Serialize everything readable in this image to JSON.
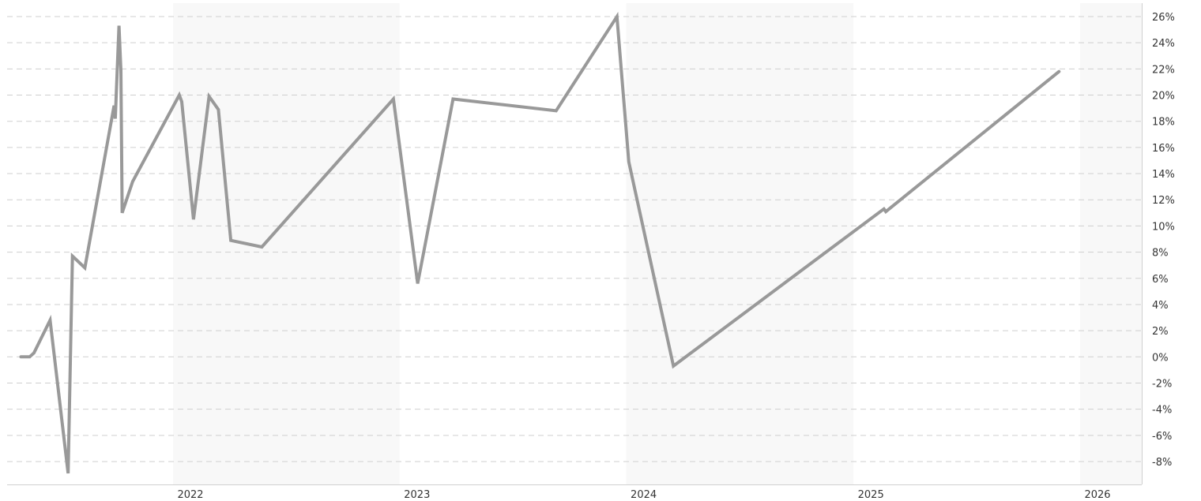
{
  "chart_data": {
    "type": "line",
    "title": "",
    "xlabel": "",
    "ylabel": "",
    "ylim": [
      -9,
      26.5
    ],
    "xlim": [
      "2021-04-25",
      "2026-04-18"
    ],
    "grid": true,
    "y_ticks": [
      {
        "value": 26,
        "label": "26%"
      },
      {
        "value": 24,
        "label": "24%"
      },
      {
        "value": 22,
        "label": "22%"
      },
      {
        "value": 20,
        "label": "20%"
      },
      {
        "value": 18,
        "label": "18%"
      },
      {
        "value": 16,
        "label": "16%"
      },
      {
        "value": 14,
        "label": "14%"
      },
      {
        "value": 12,
        "label": "12%"
      },
      {
        "value": 10,
        "label": "10%"
      },
      {
        "value": 8,
        "label": "8%"
      },
      {
        "value": 6,
        "label": "6%"
      },
      {
        "value": 4,
        "label": "4%"
      },
      {
        "value": 2,
        "label": "2%"
      },
      {
        "value": 0,
        "label": "0%"
      },
      {
        "value": -2,
        "label": "-2%"
      },
      {
        "value": -4,
        "label": "-4%"
      },
      {
        "value": -6,
        "label": "-6%"
      },
      {
        "value": -8,
        "label": "-8%"
      }
    ],
    "x_ticks": [
      {
        "value": "2022-01-01",
        "label": "2022"
      },
      {
        "value": "2023-01-01",
        "label": "2023"
      },
      {
        "value": "2024-01-01",
        "label": "2024"
      },
      {
        "value": "2025-01-01",
        "label": "2025"
      },
      {
        "value": "2026-01-01",
        "label": "2026"
      }
    ],
    "year_bands": [
      {
        "start": "2022-01-01",
        "end": "2023-01-01"
      },
      {
        "start": "2024-01-01",
        "end": "2025-01-01"
      },
      {
        "start": "2026-01-01",
        "end": "2026-04-18"
      }
    ],
    "series": [
      {
        "color": "#999999",
        "points": [
          {
            "x": "2021-05-01",
            "y": 0.0
          },
          {
            "x": "2021-05-15",
            "y": 0.0
          },
          {
            "x": "2021-05-22",
            "y": 0.3
          },
          {
            "x": "2021-06-17",
            "y": 2.8
          },
          {
            "x": "2021-07-16",
            "y": -8.9
          },
          {
            "x": "2021-07-23",
            "y": 7.7
          },
          {
            "x": "2021-08-12",
            "y": 6.8
          },
          {
            "x": "2021-09-28",
            "y": 19.2
          },
          {
            "x": "2021-09-30",
            "y": 18.2
          },
          {
            "x": "2021-10-06",
            "y": 25.3
          },
          {
            "x": "2021-10-09",
            "y": 21.9
          },
          {
            "x": "2021-10-11",
            "y": 11.0
          },
          {
            "x": "2021-10-28",
            "y": 13.4
          },
          {
            "x": "2022-01-11",
            "y": 20.0
          },
          {
            "x": "2022-01-15",
            "y": 19.5
          },
          {
            "x": "2022-02-03",
            "y": 10.5
          },
          {
            "x": "2022-02-28",
            "y": 19.9
          },
          {
            "x": "2022-03-15",
            "y": 18.9
          },
          {
            "x": "2022-04-04",
            "y": 8.9
          },
          {
            "x": "2022-05-24",
            "y": 8.4
          },
          {
            "x": "2022-12-22",
            "y": 19.7
          },
          {
            "x": "2023-01-30",
            "y": 5.6
          },
          {
            "x": "2023-03-28",
            "y": 19.7
          },
          {
            "x": "2023-09-10",
            "y": 18.8
          },
          {
            "x": "2023-12-17",
            "y": 26.0
          },
          {
            "x": "2024-01-05",
            "y": 14.9
          },
          {
            "x": "2024-03-17",
            "y": -0.7
          },
          {
            "x": "2025-02-19",
            "y": 11.3
          },
          {
            "x": "2025-02-22",
            "y": 11.1
          },
          {
            "x": "2025-11-28",
            "y": 21.8
          }
        ]
      }
    ]
  }
}
